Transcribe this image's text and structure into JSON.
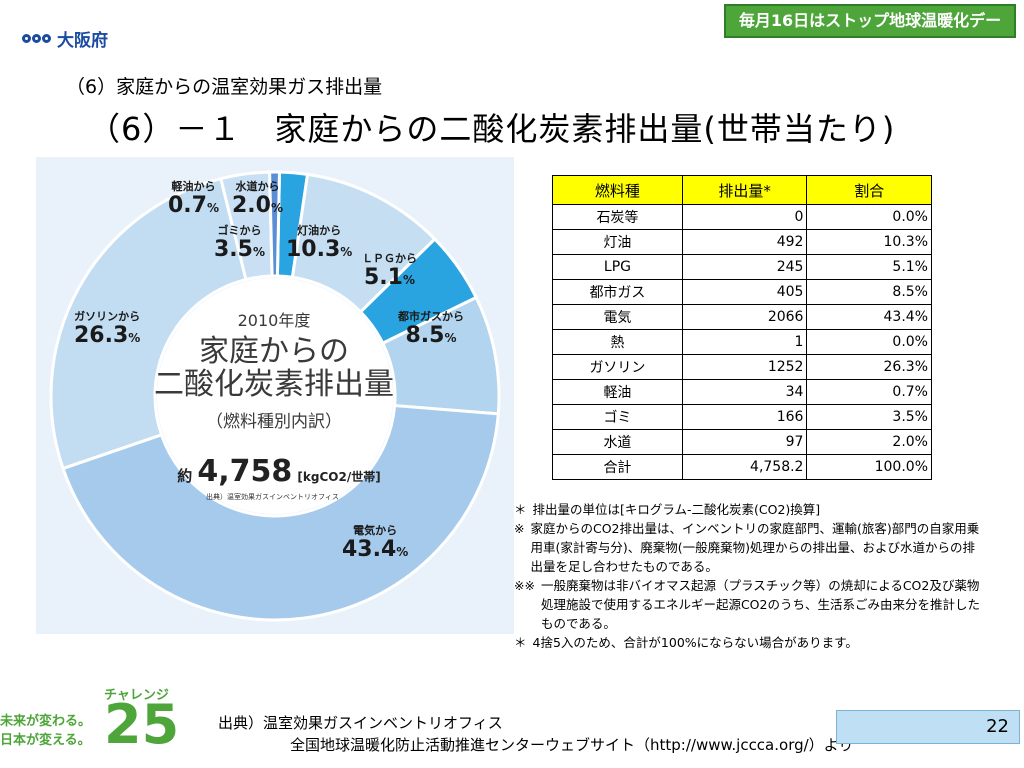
{
  "header": {
    "logo_text": "大阪府",
    "banner": "毎月16日はストップ地球温暖化デー",
    "title_sub": "（6）家庭からの温室効果ガス排出量",
    "title_main": "（6）－１　家庭からの二酸化炭素排出量(世帯当たり)"
  },
  "chart_data": {
    "type": "pie",
    "title": "2010年度 家庭からの二酸化炭素排出量（燃料種別内訳）",
    "total": "4,758",
    "total_unit": "[kgCO2/世帯]",
    "source": "出典）温室効果ガスインベントリオフィス",
    "slices": [
      {
        "name": "水道から",
        "value": 2.0,
        "color": "#2aa4e0"
      },
      {
        "name": "灯油から",
        "value": 10.3,
        "color": "#c6def2"
      },
      {
        "name": "ＬＰＧから",
        "value": 5.1,
        "color": "#2aa4e0"
      },
      {
        "name": "都市ガスから",
        "value": 8.5,
        "color": "#b2d4ef"
      },
      {
        "name": "電気から",
        "value": 43.4,
        "color": "#a6caec"
      },
      {
        "name": "ガソリンから",
        "value": 26.3,
        "color": "#c2dcf2"
      },
      {
        "name": "ゴミから",
        "value": 3.5,
        "color": "#c9e0f4"
      },
      {
        "name": "軽油から",
        "value": 0.7,
        "color": "#5b8ed4"
      }
    ]
  },
  "center": {
    "year": "2010年度",
    "line1": "家庭からの",
    "line2": "二酸化炭素排出量",
    "line3": "（燃料種別内訳）",
    "approx": "約",
    "total": "4,758",
    "unit": "[kgCO2/世帯]",
    "source": "出典）温室効果ガスインベントリオフィス"
  },
  "labels": {
    "kerosene_diesel": {
      "name": "軽油から",
      "val": "0.7",
      "pct": "%"
    },
    "water": {
      "name": "水道から",
      "val": "2.0",
      "pct": "%"
    },
    "garbage": {
      "name": "ゴミから",
      "val": "3.5",
      "pct": "%"
    },
    "kerosene": {
      "name": "灯油から",
      "val": "10.3",
      "pct": "%"
    },
    "lpg": {
      "name": "ＬＰＧから",
      "val": "5.1",
      "pct": "%"
    },
    "gasoline": {
      "name": "ガソリンから",
      "val": "26.3",
      "pct": "%"
    },
    "citygas": {
      "name": "都市ガスから",
      "val": "8.5",
      "pct": "%"
    },
    "electricity": {
      "name": "電気から",
      "val": "43.4",
      "pct": "%"
    }
  },
  "table": {
    "headers": [
      "燃料種",
      "排出量*",
      "割合"
    ],
    "rows": [
      [
        "石炭等",
        "0",
        "0.0%"
      ],
      [
        "灯油",
        "492",
        "10.3%"
      ],
      [
        "LPG",
        "245",
        "5.1%"
      ],
      [
        "都市ガス",
        "405",
        "8.5%"
      ],
      [
        "電気",
        "2066",
        "43.4%"
      ],
      [
        "熱",
        "1",
        "0.0%"
      ],
      [
        "ガソリン",
        "1252",
        "26.3%"
      ],
      [
        "軽油",
        "34",
        "0.7%"
      ],
      [
        "ゴミ",
        "166",
        "3.5%"
      ],
      [
        "水道",
        "97",
        "2.0%"
      ],
      [
        "合計",
        "4,758.2",
        "100.0%"
      ]
    ]
  },
  "notes": [
    {
      "mark": "＊",
      "text": "排出量の単位は[キログラム-二酸化炭素(CO2)換算]"
    },
    {
      "mark": "※",
      "text": "家庭からのCO2排出量は、インベントリの家庭部門、運輸(旅客)部門の自家用乗用車(家計寄与分)、廃棄物(一般廃棄物)処理からの排出量、および水道からの排出量を足し合わせたものである。"
    },
    {
      "mark": "※※",
      "text": "一般廃棄物は非バイオマス起源（プラスチック等）の焼却によるCO2及び薬物処理施設で使用するエネルギー起源CO2のうち、生活系ごみ由来分を推計したものである。"
    },
    {
      "mark": "＊",
      "text": "4捨5入のため、合計が100%にならない場合があります。"
    }
  ],
  "footer": {
    "challenge": "チャレンジ",
    "logo_num": "25",
    "slogan1": "未来が変わる。",
    "slogan2": "日本が変える。",
    "source1": "出典）温室効果ガスインベントリオフィス",
    "source2": "全国地球温暖化防止活動推進センターウェブサイト（http://www.jccca.org/）より",
    "page": "22"
  }
}
